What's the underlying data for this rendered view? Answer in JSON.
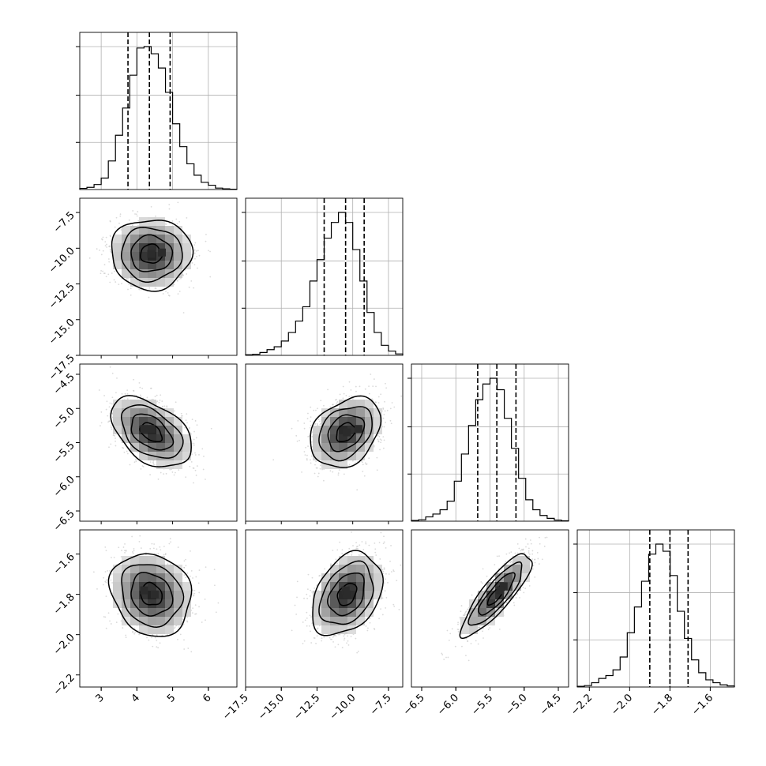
{
  "chart_data": {
    "type": "corner",
    "title": "",
    "grid": true,
    "parameters": [
      {
        "index": 0,
        "range": [
          2.4,
          6.8
        ],
        "ticks": [
          "3",
          "4",
          "5",
          "6"
        ],
        "quantiles": [
          3.75,
          4.35,
          4.93
        ],
        "hist": [
          0.008,
          0.015,
          0.035,
          0.08,
          0.2,
          0.38,
          0.57,
          0.8,
          0.99,
          1.0,
          0.95,
          0.85,
          0.68,
          0.46,
          0.3,
          0.18,
          0.1,
          0.05,
          0.03,
          0.01,
          0.005,
          0.002
        ]
      },
      {
        "index": 1,
        "range": [
          -17.5,
          -6.5
        ],
        "ticks": [
          "-17.5",
          "-15.0",
          "-12.5",
          "-10.0",
          "-7.5"
        ],
        "quantiles": [
          -12.0,
          -10.5,
          -9.2
        ],
        "hist": [
          0.004,
          0.008,
          0.02,
          0.04,
          0.06,
          0.1,
          0.16,
          0.24,
          0.34,
          0.52,
          0.67,
          0.82,
          0.93,
          1.0,
          0.93,
          0.74,
          0.52,
          0.3,
          0.16,
          0.07,
          0.03,
          0.01
        ]
      },
      {
        "index": 2,
        "range": [
          -6.65,
          -4.35
        ],
        "ticks": [
          "-6.5",
          "-6.0",
          "-5.5",
          "-5.0",
          "-4.5"
        ],
        "quantiles": [
          -5.68,
          -5.4,
          -5.12
        ],
        "hist": [
          0.005,
          0.01,
          0.03,
          0.05,
          0.08,
          0.14,
          0.28,
          0.47,
          0.67,
          0.85,
          0.96,
          1.0,
          0.92,
          0.72,
          0.51,
          0.3,
          0.15,
          0.08,
          0.04,
          0.02,
          0.008,
          0.003
        ]
      },
      {
        "index": 3,
        "range": [
          -2.26,
          -1.48
        ],
        "ticks": [
          "-2.2",
          "-2.0",
          "-1.8",
          "-1.6"
        ],
        "quantiles": [
          -1.9,
          -1.8,
          -1.71
        ],
        "hist": [
          0.005,
          0.01,
          0.03,
          0.06,
          0.08,
          0.12,
          0.21,
          0.38,
          0.56,
          0.74,
          0.93,
          1.0,
          0.95,
          0.78,
          0.53,
          0.34,
          0.19,
          0.1,
          0.05,
          0.03,
          0.015,
          0.008
        ]
      }
    ],
    "pairs": [
      {
        "row": 1,
        "col": 0,
        "mean": [
          4.4,
          -10.4
        ],
        "sd": [
          0.55,
          1.2
        ],
        "corr": 0.0,
        "peaks": [
          [
            4.4,
            -10.4
          ],
          [
            4.7,
            -10.3
          ]
        ]
      },
      {
        "row": 2,
        "col": 0,
        "mean": [
          4.4,
          -5.35
        ],
        "sd": [
          0.55,
          0.25
        ],
        "corr": -0.45,
        "peaks": [
          [
            4.2,
            -5.3
          ],
          [
            4.4,
            -5.3
          ]
        ]
      },
      {
        "row": 2,
        "col": 1,
        "mean": [
          -10.5,
          -5.35
        ],
        "sd": [
          1.2,
          0.25
        ],
        "corr": 0.3,
        "peaks": [
          [
            -10.4,
            -5.35
          ],
          [
            -9.6,
            -5.3
          ]
        ]
      },
      {
        "row": 3,
        "col": 0,
        "mean": [
          4.4,
          -1.8
        ],
        "sd": [
          0.55,
          0.1
        ],
        "corr": -0.15,
        "peaks": [
          [
            4.2,
            -1.78
          ],
          [
            4.5,
            -1.8
          ]
        ]
      },
      {
        "row": 3,
        "col": 1,
        "mean": [
          -10.4,
          -1.8
        ],
        "sd": [
          1.2,
          0.1
        ],
        "corr": 0.35,
        "peaks": [
          [
            -10.5,
            -1.78
          ],
          [
            -10.4,
            -1.8
          ]
        ]
      },
      {
        "row": 3,
        "col": 2,
        "mean": [
          -5.4,
          -1.8
        ],
        "sd": [
          0.25,
          0.1
        ],
        "corr": 0.85,
        "peaks": [
          [
            -5.3,
            -1.76
          ],
          [
            -5.35,
            -1.78
          ]
        ]
      }
    ],
    "style": {
      "line": "#000000",
      "grid": "#b0b0b0",
      "points": "#bcbcbc",
      "shade_dark": "#2b2b2b"
    }
  }
}
